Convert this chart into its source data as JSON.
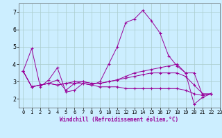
{
  "xlabel": "Windchill (Refroidissement éolien,°C)",
  "background_color": "#cceeff",
  "grid_color": "#aacccc",
  "line_color": "#990099",
  "xlim": [
    -0.5,
    23
  ],
  "ylim": [
    1.5,
    7.5
  ],
  "yticks": [
    2,
    3,
    4,
    5,
    6,
    7
  ],
  "xticks": [
    0,
    1,
    2,
    3,
    4,
    5,
    6,
    7,
    8,
    9,
    10,
    11,
    12,
    13,
    14,
    15,
    16,
    17,
    18,
    19,
    20,
    21,
    22,
    23
  ],
  "series": [
    [
      3.6,
      4.9,
      2.7,
      3.1,
      3.8,
      2.4,
      2.5,
      2.9,
      2.8,
      3.0,
      4.0,
      5.0,
      6.4,
      6.6,
      7.1,
      6.5,
      5.8,
      4.5,
      3.9,
      3.5,
      1.7,
      2.1,
      2.3
    ],
    [
      3.6,
      2.7,
      2.8,
      2.9,
      3.1,
      2.5,
      2.9,
      3.0,
      2.9,
      2.9,
      3.0,
      3.1,
      3.3,
      3.5,
      3.6,
      3.7,
      3.8,
      3.9,
      4.0,
      3.5,
      3.5,
      2.2,
      2.3
    ],
    [
      3.6,
      2.7,
      2.8,
      2.9,
      2.8,
      2.9,
      3.0,
      3.0,
      2.9,
      2.9,
      3.0,
      3.1,
      3.2,
      3.3,
      3.4,
      3.5,
      3.5,
      3.5,
      3.5,
      3.3,
      2.8,
      2.3,
      2.3
    ],
    [
      3.6,
      2.7,
      2.8,
      2.9,
      2.8,
      2.9,
      2.9,
      2.9,
      2.8,
      2.7,
      2.7,
      2.7,
      2.6,
      2.6,
      2.6,
      2.6,
      2.6,
      2.6,
      2.6,
      2.5,
      2.3,
      2.2,
      2.3
    ]
  ]
}
